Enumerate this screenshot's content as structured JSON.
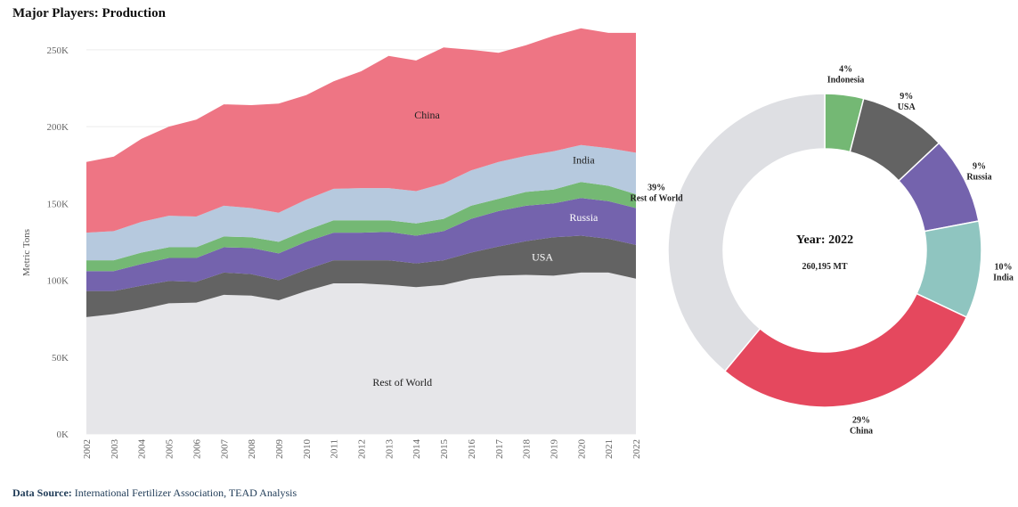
{
  "page": {
    "title": "Major Players: Production",
    "footer_label": "Data Source:",
    "footer_text": "International Fertilizer Association, TEAD Analysis"
  },
  "colors": {
    "rest_of_world": "#e6e6e9",
    "usa": "#636363",
    "russia": "#7463ad",
    "indonesia": "#74b874",
    "india": "#b6c9de",
    "china": "#ee7584",
    "india_donut": "#8fc5c0",
    "china_donut": "#e5485e",
    "rest_donut": "#dedfe3"
  },
  "chart_data": [
    {
      "type": "area",
      "stacked": true,
      "title": "",
      "xlabel": "",
      "ylabel": "Metric Tons",
      "ylim": [
        0,
        265000
      ],
      "yticks": [
        0,
        50000,
        100000,
        150000,
        200000,
        250000
      ],
      "ytick_labels": [
        "0K",
        "50K",
        "100K",
        "150K",
        "200K",
        "250K"
      ],
      "x": [
        "2002",
        "2003",
        "2004",
        "2005",
        "2006",
        "2007",
        "2008",
        "2009",
        "2010",
        "2011",
        "2012",
        "2013",
        "2014",
        "2015",
        "2016",
        "2017",
        "2018",
        "2019",
        "2020",
        "2021",
        "2022"
      ],
      "series": [
        {
          "name": "Rest of World",
          "key": "rest_of_world",
          "label": "Rest of World",
          "values": [
            76000,
            78000,
            81000,
            85000,
            85500,
            90500,
            90000,
            87000,
            93000,
            98000,
            98000,
            97000,
            95500,
            97000,
            101000,
            103000,
            103500,
            103000,
            105000,
            105000,
            101000
          ]
        },
        {
          "name": "USA",
          "key": "usa",
          "label": "USA",
          "values": [
            17000,
            15000,
            15500,
            14500,
            13500,
            14500,
            14000,
            13000,
            14000,
            15000,
            15000,
            16000,
            15500,
            16000,
            17000,
            19000,
            22000,
            25000,
            24000,
            22000,
            22000
          ]
        },
        {
          "name": "Russia",
          "key": "russia",
          "label": "Russia",
          "values": [
            13000,
            13000,
            14000,
            15000,
            15500,
            16500,
            17000,
            17500,
            18000,
            18000,
            18000,
            18500,
            18000,
            19000,
            22000,
            23000,
            23000,
            22000,
            24500,
            24500,
            24000
          ]
        },
        {
          "name": "Indonesia",
          "key": "indonesia",
          "label": "",
          "values": [
            7000,
            7000,
            7500,
            7000,
            7000,
            7000,
            7000,
            7500,
            7500,
            8000,
            8000,
            7500,
            8000,
            8000,
            8500,
            8000,
            9000,
            9000,
            10500,
            10000,
            9000
          ]
        },
        {
          "name": "India",
          "key": "india",
          "label": "India",
          "values": [
            18000,
            19000,
            20000,
            20500,
            20000,
            20000,
            19000,
            19000,
            20000,
            20500,
            21000,
            21000,
            21000,
            23000,
            23000,
            24000,
            23500,
            25000,
            24000,
            24500,
            27000
          ]
        },
        {
          "name": "China",
          "key": "china",
          "label": "China",
          "values": [
            46000,
            48500,
            54000,
            58000,
            63000,
            66000,
            67000,
            71000,
            68000,
            70000,
            76000,
            86000,
            85000,
            88500,
            78500,
            71000,
            72000,
            75000,
            76000,
            75000,
            78000
          ]
        }
      ]
    },
    {
      "type": "pie",
      "variant": "donut",
      "title": "Year: 2022",
      "total_label": "260,195 MT",
      "slices": [
        {
          "name": "Indonesia",
          "key": "indonesia",
          "percent": 4,
          "pct_label": "4%",
          "value": 9000
        },
        {
          "name": "USA",
          "key": "usa",
          "percent": 9,
          "pct_label": "9%",
          "value": 22000
        },
        {
          "name": "Russia",
          "key": "russia",
          "percent": 9,
          "pct_label": "9%",
          "value": 24000
        },
        {
          "name": "India",
          "key": "india_donut",
          "percent": 10,
          "pct_label": "10%",
          "value": 27000
        },
        {
          "name": "China",
          "key": "china_donut",
          "percent": 29,
          "pct_label": "29%",
          "value": 78000
        },
        {
          "name": "Rest of World",
          "key": "rest_donut",
          "percent": 39,
          "pct_label": "39%",
          "value": 101000
        }
      ]
    }
  ]
}
